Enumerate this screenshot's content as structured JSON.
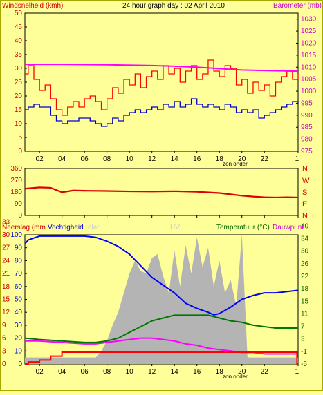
{
  "title": "24 hour graph day : 02 April 2010",
  "colors": {
    "background": "#ffff99",
    "wind": "#ff0000",
    "wind_avg": "#0000cc",
    "barometer": "#ff00ff",
    "winddir": "#dd0000",
    "rain": "#ff0000",
    "humidity": "#0000ff",
    "solar": "#b4b4b4",
    "temperature": "#007700",
    "dewpoint": "#ff00ff",
    "axis_left": "#cc0000",
    "axis_right": "#cc00cc",
    "axis_green": "#006600"
  },
  "x_ticks": [
    "02",
    "04",
    "06",
    "08",
    "10",
    "12",
    "14",
    "16",
    "18",
    "20",
    "22",
    "1"
  ],
  "sunset_label": "zon onder",
  "chart_data": [
    {
      "type": "line",
      "name": "wind-barometer",
      "left_axis_label": "Windsnelheid (kmh)",
      "right_axis_label": "Barometer (mb)",
      "left_ticks": [
        "0",
        "5",
        "10",
        "15",
        "20",
        "25",
        "30",
        "35",
        "40",
        "45",
        "50"
      ],
      "right_ticks": [
        "975",
        "980",
        "985",
        "990",
        "995",
        "1000",
        "1005",
        "1010",
        "1015",
        "1020",
        "1025",
        "1030"
      ],
      "ylim_left": [
        0,
        50
      ],
      "ylim_right": [
        975,
        1032.5
      ],
      "x_range_hours": [
        0.7,
        25.0
      ],
      "series": [
        {
          "role": "gust",
          "axis": "left",
          "x": [
            0.7,
            1,
            1.5,
            2,
            2.5,
            3,
            3.5,
            4,
            4.5,
            5,
            5.5,
            6,
            6.5,
            7,
            7.5,
            8,
            8.5,
            9,
            9.5,
            10,
            10.5,
            11,
            11.5,
            12,
            12.5,
            13,
            13.5,
            14,
            14.5,
            15,
            15.5,
            16,
            16.5,
            17,
            17.5,
            18,
            18.5,
            19,
            19.5,
            20,
            20.5,
            21,
            21.5,
            22,
            22.5,
            23,
            23.5,
            24,
            24.5,
            25
          ],
          "values": [
            28,
            31,
            26,
            22,
            24,
            19,
            15,
            13,
            16,
            18,
            16,
            19,
            20,
            18,
            15,
            19,
            23,
            21,
            26,
            24,
            28,
            23,
            27,
            29,
            26,
            31,
            28,
            30,
            25,
            29,
            31,
            26,
            28,
            33,
            29,
            27,
            31,
            30,
            24,
            26,
            21,
            25,
            22,
            24,
            20,
            25,
            27,
            29,
            26,
            28
          ]
        },
        {
          "role": "average",
          "axis": "left",
          "x": [
            0.7,
            1,
            1.5,
            2,
            2.5,
            3,
            3.5,
            4,
            4.5,
            5,
            5.5,
            6,
            6.5,
            7,
            7.5,
            8,
            8.5,
            9,
            9.5,
            10,
            10.5,
            11,
            11.5,
            12,
            12.5,
            13,
            13.5,
            14,
            14.5,
            15,
            15.5,
            16,
            16.5,
            17,
            17.5,
            18,
            18.5,
            19,
            19.5,
            20,
            20.5,
            21,
            21.5,
            22,
            22.5,
            23,
            23.5,
            24,
            24.5,
            25
          ],
          "values": [
            15,
            16,
            17,
            16,
            16,
            13,
            11,
            10,
            11,
            11,
            12,
            12,
            11,
            10,
            9,
            10,
            12,
            11,
            13,
            14,
            15,
            14,
            15,
            16,
            15,
            17,
            16,
            18,
            16,
            17,
            19,
            17,
            16,
            17,
            16,
            15,
            17,
            16,
            14,
            15,
            14,
            15,
            12,
            13,
            14,
            15,
            16,
            17,
            18,
            17
          ]
        },
        {
          "role": "barometer",
          "axis": "right",
          "x": [
            0.7,
            4,
            8,
            12,
            14,
            16,
            18,
            20,
            22,
            25
          ],
          "values": [
            1011.2,
            1011.2,
            1011.0,
            1010.7,
            1010.4,
            1010.0,
            1009.4,
            1008.8,
            1008.6,
            1008.3
          ]
        }
      ]
    },
    {
      "type": "line",
      "name": "wind-direction",
      "left_ticks": [
        "0",
        "90",
        "180",
        "270",
        "360"
      ],
      "right_ticks": [
        "N",
        "E",
        "S",
        "W",
        "N"
      ],
      "ylim": [
        0,
        360
      ],
      "x_range_hours": [
        0.7,
        25.0
      ],
      "series": [
        {
          "role": "direction",
          "x": [
            0.7,
            2,
            3,
            3.5,
            4,
            5,
            6,
            8,
            10,
            12,
            14,
            16,
            18,
            19,
            20,
            21,
            22,
            23,
            24,
            25
          ],
          "values": [
            205,
            215,
            212,
            195,
            178,
            192,
            190,
            188,
            185,
            184,
            186,
            182,
            172,
            162,
            152,
            145,
            140,
            138,
            140,
            138
          ]
        }
      ]
    },
    {
      "type": "area",
      "name": "rain-humidity-solar-temperature",
      "left_axis_label_1": "Neerslag (mm",
      "left_axis_label_2": "Vochtigheid",
      "solar_label": "olar",
      "uv_label": "UV",
      "right_axis_label_1": "Temperatuur (°C)",
      "right_axis_label_2": "Dauwpunt",
      "left_ticks": [
        "0",
        "10",
        "20",
        "30",
        "40",
        "50",
        "60",
        "70",
        "80",
        "90",
        "100"
      ],
      "rain_ticks": [
        "0",
        "3",
        "6",
        "9",
        "12",
        "15",
        "18",
        "21",
        "24",
        "27",
        "30",
        "33"
      ],
      "right_ticks": [
        "-5",
        "-1",
        "3",
        "7",
        "11",
        "15",
        "18",
        "22",
        "26",
        "30",
        "34",
        "40"
      ],
      "ylim_left": [
        0,
        100
      ],
      "ylim_right": [
        -5,
        40
      ],
      "x_range_hours": [
        0.7,
        25.0
      ],
      "series": [
        {
          "role": "humidity",
          "axis": "left",
          "x": [
            0.7,
            1,
            2,
            3,
            4,
            5,
            6,
            7,
            8,
            9,
            10,
            11,
            12,
            13,
            14,
            15,
            16,
            17,
            17.5,
            18,
            19,
            20,
            21,
            22,
            23,
            24,
            25
          ],
          "values": [
            93,
            96,
            99,
            99,
            99,
            99,
            99,
            98,
            95,
            91,
            85,
            76,
            67,
            61,
            55,
            47,
            43,
            40,
            38,
            39,
            44,
            50,
            53,
            55,
            55,
            56,
            57
          ]
        },
        {
          "role": "temperature",
          "axis": "right",
          "x": [
            0.7,
            2,
            4,
            6,
            7,
            8,
            9,
            10,
            11,
            12,
            13,
            14,
            15,
            16,
            17,
            18,
            19,
            20,
            21,
            22,
            23,
            24,
            25
          ],
          "values": [
            4,
            3.5,
            3,
            2.5,
            2.5,
            3,
            4,
            6,
            8,
            10,
            11,
            12,
            12,
            12,
            12,
            11,
            10,
            9.5,
            8.5,
            8,
            7.5,
            7.5,
            7.5
          ]
        },
        {
          "role": "dewpoint",
          "axis": "right",
          "x": [
            0.7,
            2,
            4,
            6,
            7,
            8,
            9,
            10,
            11,
            12,
            13,
            14,
            15,
            16,
            17,
            18,
            19,
            20,
            21,
            22,
            23,
            24,
            25
          ],
          "values": [
            3,
            3,
            2.5,
            2,
            2,
            2.5,
            3,
            3.5,
            4,
            4,
            3.5,
            3,
            2,
            1.5,
            0.5,
            0,
            -0.5,
            -1,
            -1,
            -1.5,
            -1.5,
            -1.5,
            -1.5
          ]
        },
        {
          "role": "rain",
          "axis": "rain",
          "x": [
            0.7,
            1,
            2,
            3,
            4,
            24.9,
            24.9,
            25
          ],
          "values": [
            0,
            0.5,
            1,
            2,
            3,
            3,
            0,
            0
          ]
        },
        {
          "role": "solar",
          "axis": "left",
          "x": [
            0.7,
            7,
            7.5,
            8,
            8.5,
            9,
            9.5,
            10,
            10.5,
            11,
            11.5,
            12,
            12.5,
            13,
            13.5,
            14,
            14.5,
            15,
            15.5,
            16,
            16.5,
            17,
            17.5,
            18,
            18.5,
            19,
            19.5,
            20,
            20.5,
            25
          ],
          "values": [
            5,
            5,
            10,
            18,
            30,
            40,
            55,
            70,
            80,
            72,
            70,
            82,
            85,
            68,
            55,
            88,
            60,
            92,
            70,
            98,
            75,
            90,
            60,
            80,
            55,
            65,
            45,
            100,
            5,
            5
          ]
        }
      ]
    }
  ]
}
